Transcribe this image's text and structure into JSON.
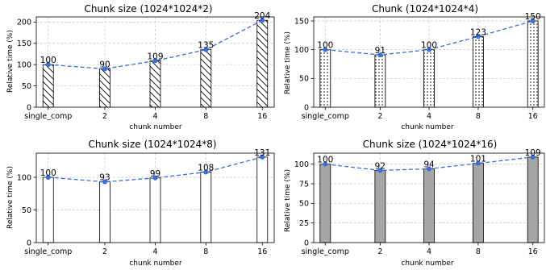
{
  "chart_data": [
    {
      "type": "bar",
      "title": "Chunk size (1024*1024*2)",
      "xlabel": "chunk number",
      "ylabel": "Relative time (%)",
      "categories": [
        "single_comp",
        "2",
        "4",
        "8",
        "16"
      ],
      "values": [
        100,
        90,
        109,
        135,
        204
      ],
      "line_values": [
        100,
        90,
        109,
        135,
        204
      ],
      "data_labels": [
        "100",
        "90",
        "109",
        "135",
        "204"
      ],
      "ylim": [
        0,
        212
      ],
      "yticks": [
        0,
        50,
        100,
        150,
        200
      ],
      "bar_fill": "#ffffff",
      "bar_pattern": "diagonal-hatch",
      "line_color": "#3a6fd8",
      "grid": true
    },
    {
      "type": "bar",
      "title": "Chunk (1024*1024*4)",
      "xlabel": "chunk number",
      "ylabel": "Relative time (%)",
      "categories": [
        "single_comp",
        "2",
        "4",
        "8",
        "16"
      ],
      "values": [
        100,
        91,
        100,
        123,
        150
      ],
      "line_values": [
        100,
        91,
        100,
        123,
        150
      ],
      "data_labels": [
        "100",
        "91",
        "100",
        "123",
        "150"
      ],
      "ylim": [
        0,
        157
      ],
      "yticks": [
        0,
        50,
        100,
        150
      ],
      "bar_fill": "#ffffff",
      "bar_pattern": "dots",
      "line_color": "#3a6fd8",
      "grid": true
    },
    {
      "type": "bar",
      "title": "Chunk size (1024*1024*8)",
      "xlabel": "chunk number",
      "ylabel": "Relative time (%)",
      "categories": [
        "single_comp",
        "2",
        "4",
        "8",
        "16"
      ],
      "values": [
        100,
        93,
        99,
        108,
        131
      ],
      "line_values": [
        100,
        93,
        99,
        108,
        131
      ],
      "data_labels": [
        "100",
        "93",
        "99",
        "108",
        "131"
      ],
      "ylim": [
        0,
        137
      ],
      "yticks": [
        0,
        50,
        100
      ],
      "bar_fill": "#ffffff",
      "bar_pattern": "none",
      "line_color": "#3a6fd8",
      "grid": true
    },
    {
      "type": "bar",
      "title": "Chunk size (1024*1024*16)",
      "xlabel": "chunk number",
      "ylabel": "Relative time (%)",
      "categories": [
        "single_comp",
        "2",
        "4",
        "8",
        "16"
      ],
      "values": [
        100,
        92,
        94,
        101,
        109
      ],
      "line_values": [
        100,
        92,
        94,
        101,
        109
      ],
      "data_labels": [
        "100",
        "92",
        "94",
        "101",
        "109"
      ],
      "ylim": [
        0,
        114
      ],
      "yticks": [
        0,
        25,
        50,
        75,
        100
      ],
      "bar_fill": "#a6a6a6",
      "bar_pattern": "none",
      "line_color": "#3a6fd8",
      "grid": true
    }
  ]
}
